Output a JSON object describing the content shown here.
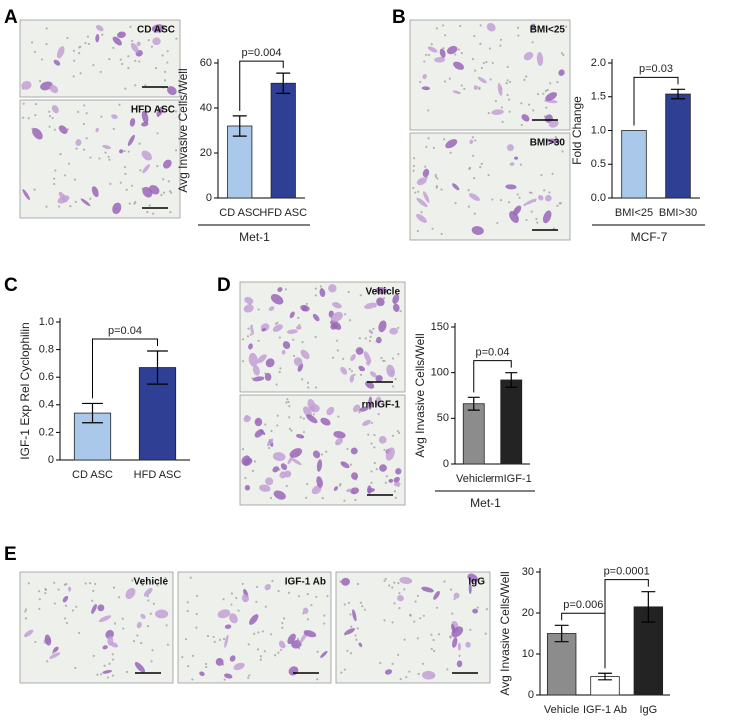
{
  "chart_data": [
    {
      "type": "bar",
      "panel": "A",
      "images": [
        "CD ASC",
        "HFD ASC"
      ],
      "ylabel": "Avg Invasive Cells/Well",
      "xlabel": "Met-1",
      "categories": [
        "CD ASC",
        "HFD ASC"
      ],
      "values": [
        32,
        51
      ],
      "errors": [
        4.5,
        4.5
      ],
      "colors": [
        "#a9c8ea",
        "#2e3f94"
      ],
      "ylim": [
        0,
        60
      ],
      "yticks": [
        0,
        20,
        40,
        60
      ],
      "annotations": [
        {
          "label": "p=0.004",
          "between": [
            "CD ASC",
            "HFD ASC"
          ]
        }
      ]
    },
    {
      "type": "bar",
      "panel": "B",
      "images": [
        "BMI<25",
        "BMI>30"
      ],
      "ylabel": "Fold Change",
      "xlabel": "MCF-7",
      "categories": [
        "BMI<25",
        "BMI>30"
      ],
      "values": [
        1.0,
        1.54
      ],
      "errors": [
        null,
        0.07
      ],
      "colors": [
        "#a9c8ea",
        "#2e3f94"
      ],
      "ylim": [
        0,
        2.0
      ],
      "yticks": [
        {
          "value": 0,
          "label": "0.0"
        },
        0.5,
        {
          "value": 1.0,
          "label": "1.0"
        },
        1.5,
        {
          "value": 2.0,
          "label": "2.0"
        }
      ],
      "annotations": [
        {
          "label": "p=0.03",
          "between": [
            "BMI<25",
            "BMI>30"
          ]
        }
      ]
    },
    {
      "type": "bar",
      "panel": "C",
      "images": [],
      "ylabel": "IGF-1 Exp Rel Cyclophilin",
      "categories": [
        "CD ASC",
        "HFD ASC"
      ],
      "values": [
        0.34,
        0.67
      ],
      "errors": [
        0.07,
        0.12
      ],
      "colors": [
        "#a9c8ea",
        "#2e3f94"
      ],
      "ylim": [
        0,
        1.0
      ],
      "yticks": [
        0,
        0.2,
        0.4,
        0.6,
        0.8,
        {
          "value": 1.0,
          "label": "1.0"
        }
      ],
      "annotations": [
        {
          "label": "p=0.04",
          "between": [
            "CD ASC",
            "HFD ASC"
          ]
        }
      ]
    },
    {
      "type": "bar",
      "panel": "D",
      "images": [
        "Vehicle",
        "rmIGF-1"
      ],
      "ylabel": "Avg Invasive Cells/Well",
      "xlabel": "Met-1",
      "categories": [
        "Vehicle",
        "rmIGF-1"
      ],
      "values": [
        66,
        92
      ],
      "errors": [
        7,
        8
      ],
      "colors": [
        "#8c8c8c",
        "#232323"
      ],
      "ylim": [
        0,
        150
      ],
      "yticks": [
        0,
        50,
        100,
        150
      ],
      "annotations": [
        {
          "label": "p=0.04",
          "between": [
            "Vehicle",
            "rmIGF-1"
          ]
        }
      ]
    },
    {
      "type": "bar",
      "panel": "E",
      "images": [
        "Vehicle",
        "IGF-1 Ab",
        "IgG"
      ],
      "ylabel": "Avg Invasive Cells/Well",
      "categories": [
        "Vehicle",
        "IGF-1 Ab",
        "IgG"
      ],
      "values": [
        15,
        4.5,
        21.5
      ],
      "errors": [
        2,
        0.8,
        3.7
      ],
      "colors": [
        "#8c8c8c",
        "#ffffff",
        "#232323"
      ],
      "ylim": [
        0,
        30
      ],
      "yticks": [
        0,
        10,
        20,
        30
      ],
      "annotations": [
        {
          "label": "p=0.006",
          "between": [
            "Vehicle",
            "IGF-1 Ab"
          ]
        },
        {
          "label": "p=0.0001",
          "between": [
            "IGF-1 Ab",
            "IgG"
          ]
        }
      ]
    }
  ]
}
